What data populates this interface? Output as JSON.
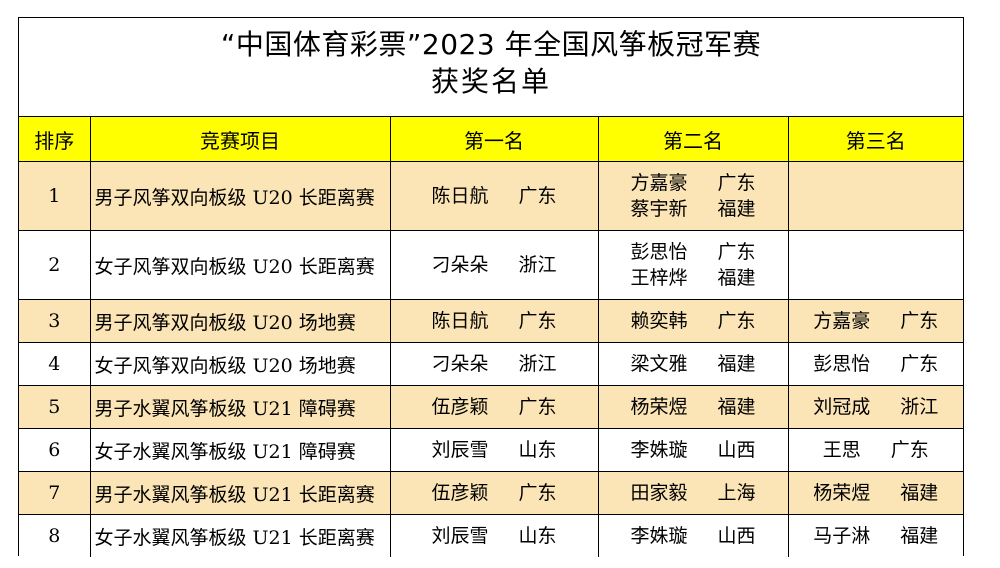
{
  "title": {
    "line1": "“中国体育彩票”2023 年全国风筝板冠军赛",
    "line2": "获奖名单"
  },
  "colors": {
    "header_bg": "#ffff00",
    "odd_row_bg": "#fbe5b6",
    "even_row_bg": "#ffffff"
  },
  "table": {
    "headers": {
      "rank": "排序",
      "event": "竞赛项目",
      "first": "第一名",
      "second": "第二名",
      "third": "第三名"
    },
    "rows": [
      {
        "no": "1",
        "event": "男子风筝双向板级 U20 长距离赛",
        "first": [
          {
            "name": "陈日航",
            "region": "广东"
          }
        ],
        "second": [
          {
            "name": "方嘉豪",
            "region": "广东"
          },
          {
            "name": "蔡宇新",
            "region": "福建"
          }
        ],
        "third": []
      },
      {
        "no": "2",
        "event": "女子风筝双向板级 U20 长距离赛",
        "first": [
          {
            "name": "刁朵朵",
            "region": "浙江"
          }
        ],
        "second": [
          {
            "name": "彭思怡",
            "region": "广东"
          },
          {
            "name": "王梓烨",
            "region": "福建"
          }
        ],
        "third": []
      },
      {
        "no": "3",
        "event": "男子风筝双向板级 U20 场地赛",
        "first": [
          {
            "name": "陈日航",
            "region": "广东"
          }
        ],
        "second": [
          {
            "name": "赖奕韩",
            "region": "广东"
          }
        ],
        "third": [
          {
            "name": "方嘉豪",
            "region": "广东"
          }
        ]
      },
      {
        "no": "4",
        "event": "女子风筝双向板级 U20 场地赛",
        "first": [
          {
            "name": "刁朵朵",
            "region": "浙江"
          }
        ],
        "second": [
          {
            "name": "梁文雅",
            "region": "福建"
          }
        ],
        "third": [
          {
            "name": "彭思怡",
            "region": "广东"
          }
        ]
      },
      {
        "no": "5",
        "event": "男子水翼风筝板级 U21 障碍赛",
        "first": [
          {
            "name": "伍彦颖",
            "region": "广东"
          }
        ],
        "second": [
          {
            "name": "杨荣煜",
            "region": "福建"
          }
        ],
        "third": [
          {
            "name": "刘冠成",
            "region": "浙江"
          }
        ]
      },
      {
        "no": "6",
        "event": "女子水翼风筝板级 U21 障碍赛",
        "first": [
          {
            "name": "刘辰雪",
            "region": "山东"
          }
        ],
        "second": [
          {
            "name": "李姝璇",
            "region": "山西"
          }
        ],
        "third": [
          {
            "name": "王思",
            "region": "广东"
          }
        ]
      },
      {
        "no": "7",
        "event": "男子水翼风筝板级 U21 长距离赛",
        "first": [
          {
            "name": "伍彦颖",
            "region": "广东"
          }
        ],
        "second": [
          {
            "name": "田家毅",
            "region": "上海"
          }
        ],
        "third": [
          {
            "name": "杨荣煜",
            "region": "福建"
          }
        ]
      },
      {
        "no": "8",
        "event": "女子水翼风筝板级 U21 长距离赛",
        "first": [
          {
            "name": "刘辰雪",
            "region": "山东"
          }
        ],
        "second": [
          {
            "name": "李姝璇",
            "region": "山西"
          }
        ],
        "third": [
          {
            "name": "马子淋",
            "region": "福建"
          }
        ]
      }
    ]
  }
}
